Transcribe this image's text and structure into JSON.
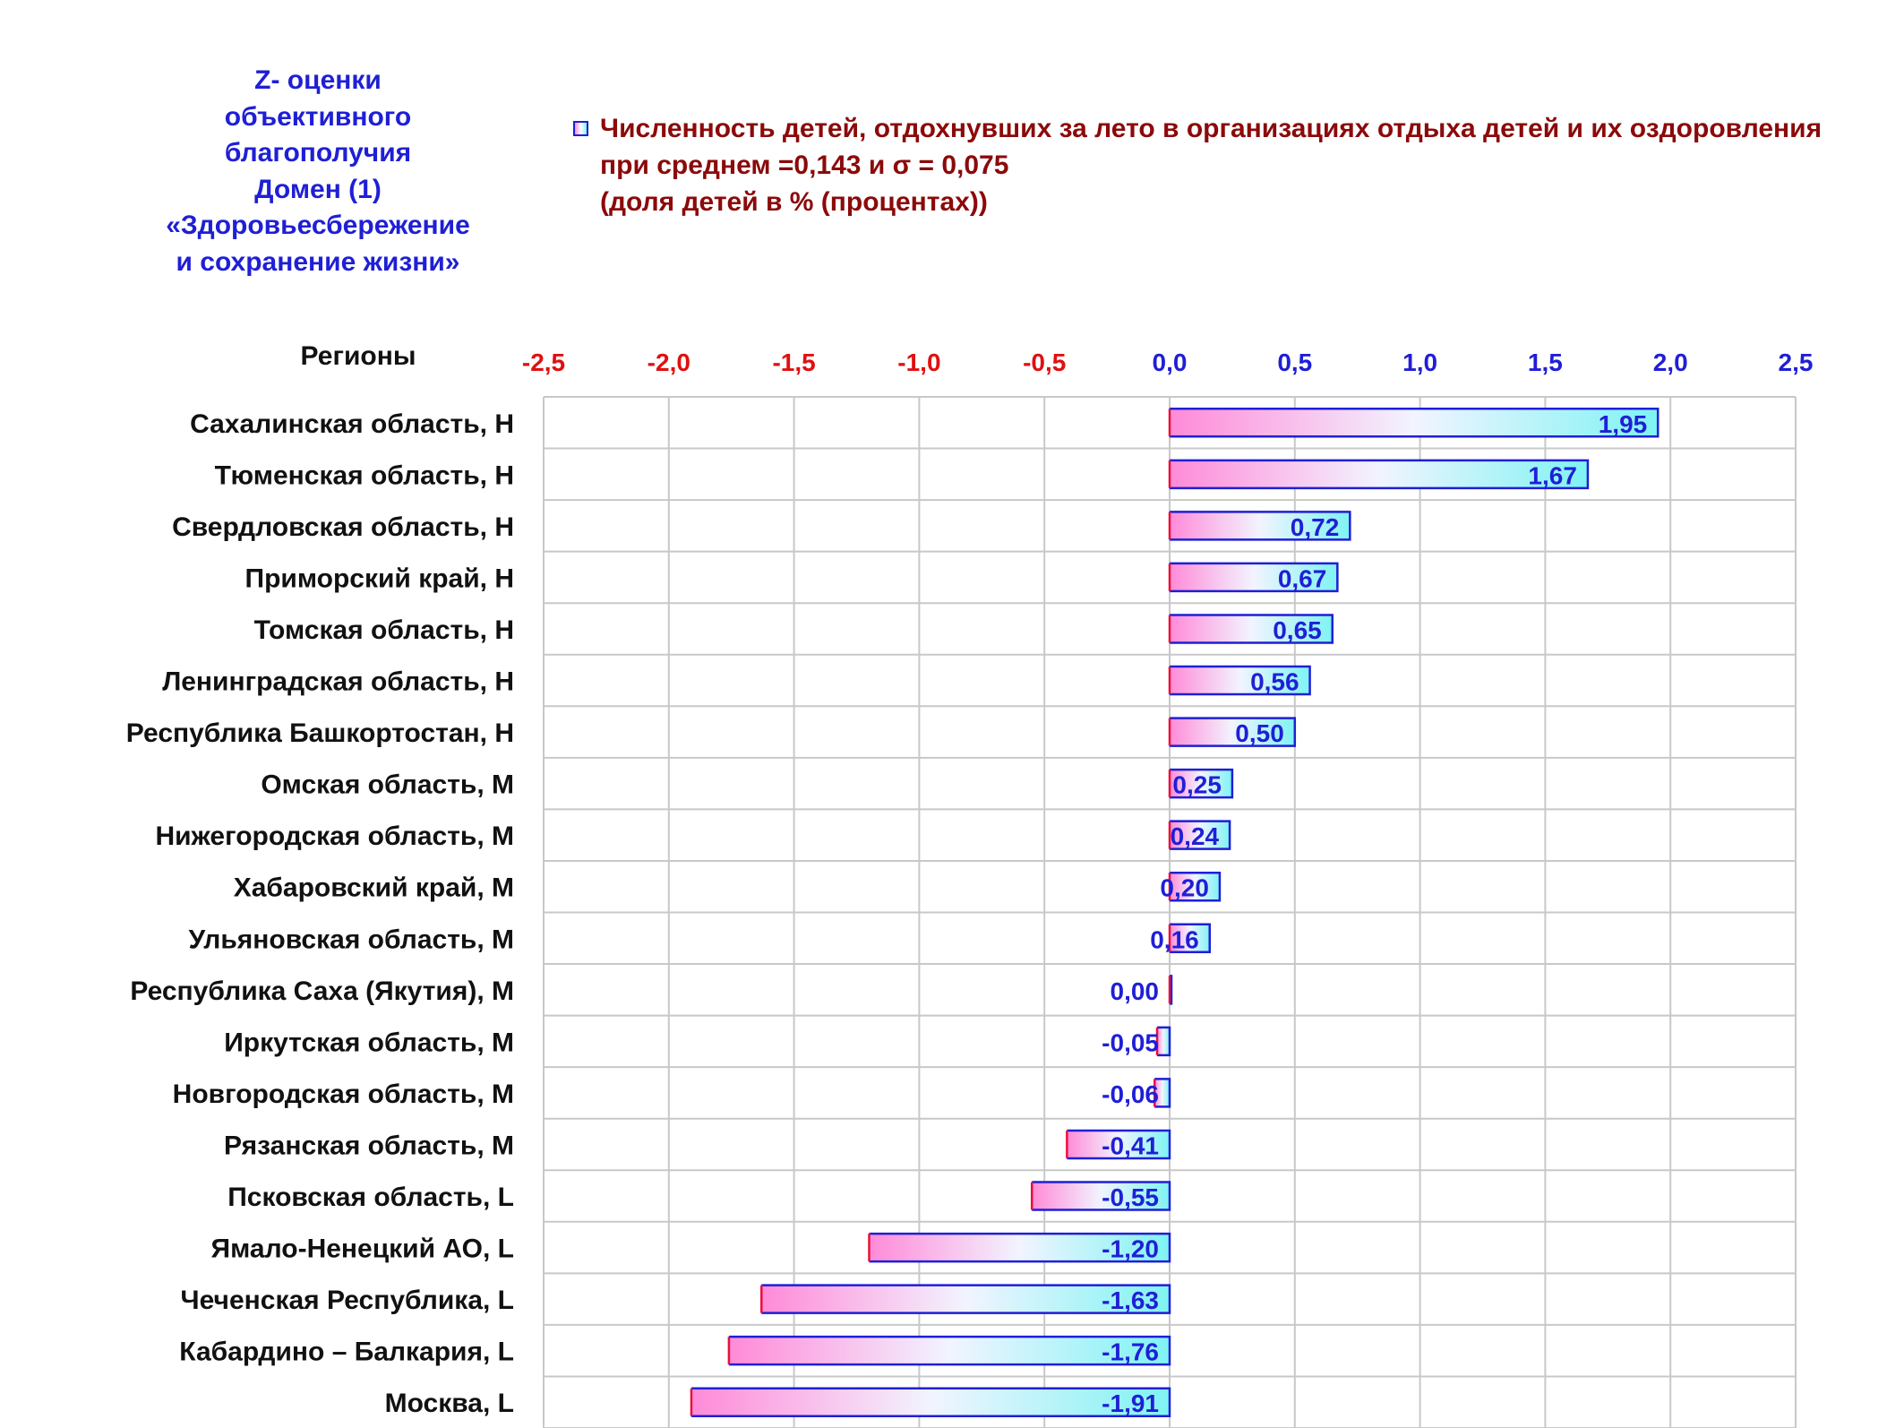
{
  "side_title": [
    "Z- оценки",
    "объективного",
    "благополучия",
    "Домен (1)",
    "«Здоровьесбережение",
    "и сохранение жизни»"
  ],
  "legend": {
    "line1": "Численность детей, отдохнувших за лето в организациях отдыха детей и их оздоровления",
    "line2": "при среднем =0,143  и σ = 0,075",
    "line3": "(доля детей в % (процентах))"
  },
  "colors": {
    "title": "#1f1fd6",
    "legend": "#8b0a0a",
    "negative_tick": "#e01010",
    "positive_tick": "#1f1fd6",
    "bar_start": "#ff8ad8",
    "bar_end": "#7ff3f3",
    "bar_border_right": "#1f1fd6",
    "bar_border_left": "#e8103c",
    "value_label": "#1f1fd6"
  },
  "chart_data": {
    "type": "bar",
    "orientation": "horizontal",
    "category_header": "Регионы",
    "categories": [
      "Сахалинская область,  Н",
      "Тюменская область,  Н",
      "Свердловская область,  Н",
      "Приморский край,  Н",
      "Томская область,  Н",
      "Ленинградская область,  Н",
      "Республика Башкортостан,  Н",
      "Омская область,  М",
      "Нижегородская область,  М",
      "Хабаровский край,  М",
      "Ульяновская область,  М",
      "Республика Саха (Якутия),  М",
      "Иркутская область,  М",
      "Новгородская область,  М",
      "Рязанская область,  М",
      "Псковская область,  L",
      "Ямало-Ненецкий АО,  L",
      "Чеченская Республика,  L",
      "Кабардино – Балкария,  L",
      "Москва,  L"
    ],
    "values": [
      1.95,
      1.67,
      0.72,
      0.67,
      0.65,
      0.56,
      0.5,
      0.25,
      0.24,
      0.2,
      0.16,
      0.0,
      -0.05,
      -0.06,
      -0.41,
      -0.55,
      -1.2,
      -1.63,
      -1.76,
      -1.91
    ],
    "value_labels": [
      "1,95",
      "1,67",
      "0,72",
      "0,67",
      "0,65",
      "0,56",
      "0,50",
      "0,25",
      "0,24",
      "0,20",
      "0,16",
      "0,00",
      "-0,05",
      "-0,06",
      "-0,41",
      "-0,55",
      "-1,20",
      "-1,63",
      "-1,76",
      "-1,91"
    ],
    "xlim": [
      -2.5,
      2.5
    ],
    "ticks": [
      -2.5,
      -2.0,
      -1.5,
      -1.0,
      -0.5,
      0.0,
      0.5,
      1.0,
      1.5,
      2.0,
      2.5
    ],
    "tick_labels": [
      "-2,5",
      "-2,0",
      "-1,5",
      "-1,0",
      "-0,5",
      "0,0",
      "0,5",
      "1,0",
      "1,5",
      "2,0",
      "2,5"
    ],
    "axis_position": "top",
    "grid": true
  }
}
